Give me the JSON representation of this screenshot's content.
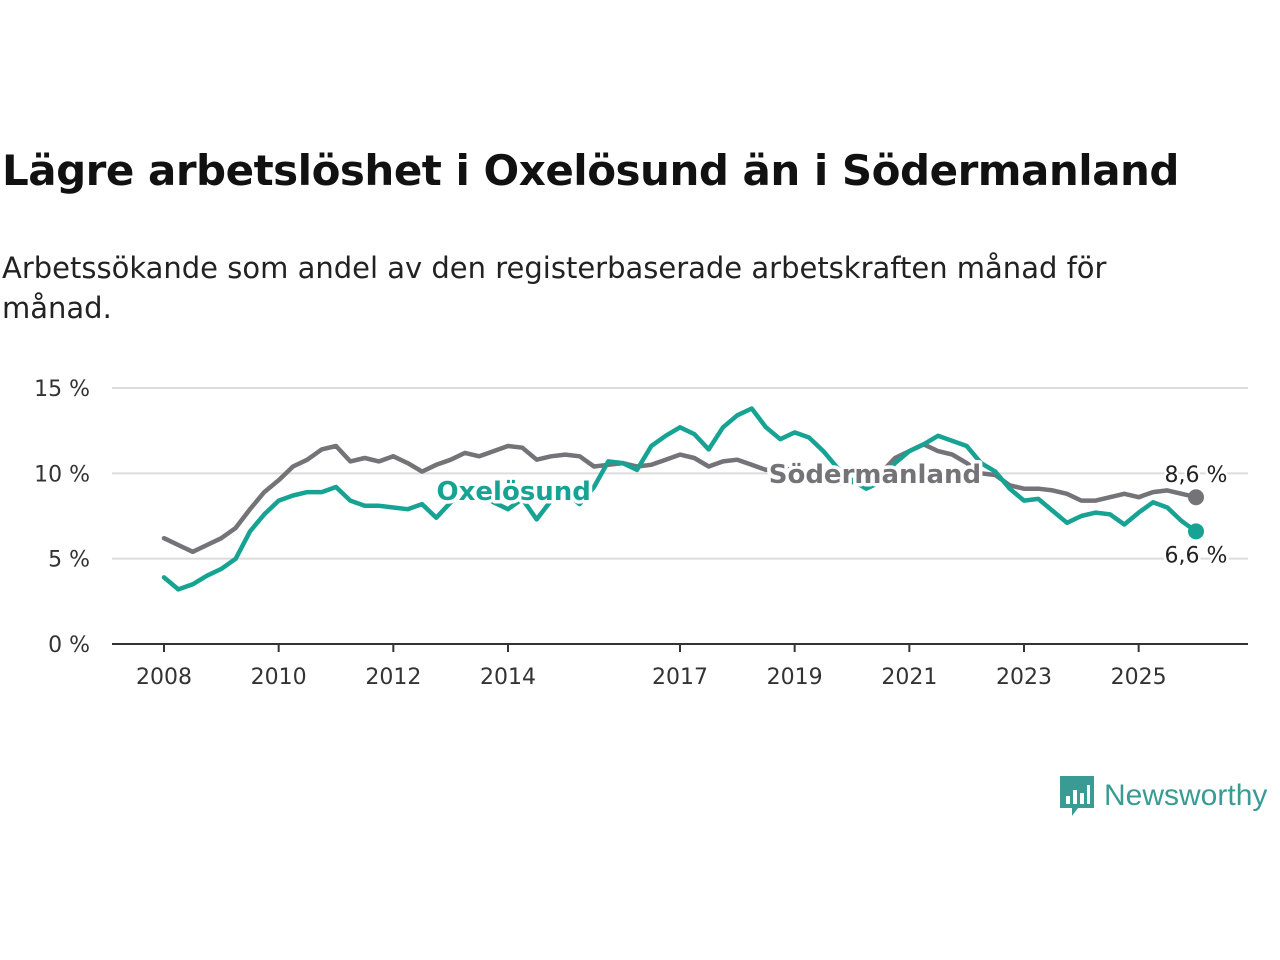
{
  "header": {
    "title": "Lägre arbetslöshet i Oxelösund än i Södermanland",
    "subtitle": "Arbetssökande som andel av den registerbaserade arbetskraften månad för månad."
  },
  "brand": {
    "name": "Newsworthy",
    "icon": "newsworthy-logo-icon",
    "color": "#3a9b94"
  },
  "chart_data": {
    "type": "line",
    "ylim": [
      0,
      15
    ],
    "xlim": [
      2007.5,
      2026.4
    ],
    "y_ticks": [
      {
        "value": 0,
        "label": "0 %"
      },
      {
        "value": 5,
        "label": "5 %"
      },
      {
        "value": 10,
        "label": "10 %"
      },
      {
        "value": 15,
        "label": "15 %"
      }
    ],
    "x_ticks": [
      {
        "value": 2008,
        "label": "2008"
      },
      {
        "value": 2010,
        "label": "2010"
      },
      {
        "value": 2012,
        "label": "2012"
      },
      {
        "value": 2014,
        "label": "2014"
      },
      {
        "value": 2017,
        "label": "2017"
      },
      {
        "value": 2019,
        "label": "2019"
      },
      {
        "value": 2021,
        "label": "2021"
      },
      {
        "value": 2023,
        "label": "2023"
      },
      {
        "value": 2025,
        "label": "2025"
      }
    ],
    "grid": true,
    "series": [
      {
        "name": "Södermanland",
        "color": "#737378",
        "end_label": "8,6 %",
        "points": [
          [
            2008.0,
            6.2
          ],
          [
            2008.25,
            5.8
          ],
          [
            2008.5,
            5.4
          ],
          [
            2008.75,
            5.8
          ],
          [
            2009.0,
            6.2
          ],
          [
            2009.25,
            6.8
          ],
          [
            2009.5,
            7.9
          ],
          [
            2009.75,
            8.9
          ],
          [
            2010.0,
            9.6
          ],
          [
            2010.25,
            10.4
          ],
          [
            2010.5,
            10.8
          ],
          [
            2010.75,
            11.4
          ],
          [
            2011.0,
            11.6
          ],
          [
            2011.25,
            10.7
          ],
          [
            2011.5,
            10.9
          ],
          [
            2011.75,
            10.7
          ],
          [
            2012.0,
            11.0
          ],
          [
            2012.25,
            10.6
          ],
          [
            2012.5,
            10.1
          ],
          [
            2012.75,
            10.5
          ],
          [
            2013.0,
            10.8
          ],
          [
            2013.25,
            11.2
          ],
          [
            2013.5,
            11.0
          ],
          [
            2013.75,
            11.3
          ],
          [
            2014.0,
            11.6
          ],
          [
            2014.25,
            11.5
          ],
          [
            2014.5,
            10.8
          ],
          [
            2014.75,
            11.0
          ],
          [
            2015.0,
            11.1
          ],
          [
            2015.25,
            11.0
          ],
          [
            2015.5,
            10.4
          ],
          [
            2015.75,
            10.5
          ],
          [
            2016.0,
            10.6
          ],
          [
            2016.25,
            10.4
          ],
          [
            2016.5,
            10.5
          ],
          [
            2016.75,
            10.8
          ],
          [
            2017.0,
            11.1
          ],
          [
            2017.25,
            10.9
          ],
          [
            2017.5,
            10.4
          ],
          [
            2017.75,
            10.7
          ],
          [
            2018.0,
            10.8
          ],
          [
            2018.25,
            10.5
          ],
          [
            2018.5,
            10.2
          ],
          [
            2018.75,
            10.3
          ],
          [
            2019.0,
            10.2
          ],
          [
            2019.25,
            9.9
          ],
          [
            2019.5,
            9.7
          ],
          [
            2019.75,
            9.4
          ],
          [
            2020.0,
            9.5
          ],
          [
            2020.25,
            9.3
          ],
          [
            2020.5,
            10.0
          ],
          [
            2020.75,
            10.9
          ],
          [
            2021.0,
            11.3
          ],
          [
            2021.25,
            11.7
          ],
          [
            2021.5,
            11.3
          ],
          [
            2021.75,
            11.1
          ],
          [
            2022.0,
            10.6
          ],
          [
            2022.25,
            10.0
          ],
          [
            2022.5,
            9.9
          ],
          [
            2022.75,
            9.3
          ],
          [
            2023.0,
            9.1
          ],
          [
            2023.25,
            9.1
          ],
          [
            2023.5,
            9.0
          ],
          [
            2023.75,
            8.8
          ],
          [
            2024.0,
            8.4
          ],
          [
            2024.25,
            8.4
          ],
          [
            2024.5,
            8.6
          ],
          [
            2024.75,
            8.8
          ],
          [
            2025.0,
            8.6
          ],
          [
            2025.25,
            8.9
          ],
          [
            2025.5,
            9.0
          ],
          [
            2025.75,
            8.8
          ],
          [
            2026.0,
            8.6
          ]
        ]
      },
      {
        "name": "Oxelösund",
        "color": "#17a394",
        "end_label": "6,6 %",
        "points": [
          [
            2008.0,
            3.9
          ],
          [
            2008.25,
            3.2
          ],
          [
            2008.5,
            3.5
          ],
          [
            2008.75,
            4.0
          ],
          [
            2009.0,
            4.4
          ],
          [
            2009.25,
            5.0
          ],
          [
            2009.5,
            6.6
          ],
          [
            2009.75,
            7.6
          ],
          [
            2010.0,
            8.4
          ],
          [
            2010.25,
            8.7
          ],
          [
            2010.5,
            8.9
          ],
          [
            2010.75,
            8.9
          ],
          [
            2011.0,
            9.2
          ],
          [
            2011.25,
            8.4
          ],
          [
            2011.5,
            8.1
          ],
          [
            2011.75,
            8.1
          ],
          [
            2012.0,
            8.0
          ],
          [
            2012.25,
            7.9
          ],
          [
            2012.5,
            8.2
          ],
          [
            2012.75,
            7.4
          ],
          [
            2013.0,
            8.3
          ],
          [
            2013.25,
            9.0
          ],
          [
            2013.5,
            8.8
          ],
          [
            2013.75,
            8.3
          ],
          [
            2014.0,
            7.9
          ],
          [
            2014.25,
            8.5
          ],
          [
            2014.5,
            7.3
          ],
          [
            2014.75,
            8.4
          ],
          [
            2015.0,
            8.9
          ],
          [
            2015.25,
            8.2
          ],
          [
            2015.5,
            9.2
          ],
          [
            2015.75,
            10.7
          ],
          [
            2016.0,
            10.6
          ],
          [
            2016.25,
            10.2
          ],
          [
            2016.5,
            11.6
          ],
          [
            2016.75,
            12.2
          ],
          [
            2017.0,
            12.7
          ],
          [
            2017.25,
            12.3
          ],
          [
            2017.5,
            11.4
          ],
          [
            2017.75,
            12.7
          ],
          [
            2018.0,
            13.4
          ],
          [
            2018.25,
            13.8
          ],
          [
            2018.5,
            12.7
          ],
          [
            2018.75,
            12.0
          ],
          [
            2019.0,
            12.4
          ],
          [
            2019.25,
            12.1
          ],
          [
            2019.5,
            11.3
          ],
          [
            2019.75,
            10.3
          ],
          [
            2020.0,
            9.6
          ],
          [
            2020.25,
            9.1
          ],
          [
            2020.5,
            9.5
          ],
          [
            2020.75,
            10.6
          ],
          [
            2021.0,
            11.3
          ],
          [
            2021.25,
            11.7
          ],
          [
            2021.5,
            12.2
          ],
          [
            2021.75,
            11.9
          ],
          [
            2022.0,
            11.6
          ],
          [
            2022.25,
            10.6
          ],
          [
            2022.5,
            10.1
          ],
          [
            2022.75,
            9.1
          ],
          [
            2023.0,
            8.4
          ],
          [
            2023.25,
            8.5
          ],
          [
            2023.5,
            7.8
          ],
          [
            2023.75,
            7.1
          ],
          [
            2024.0,
            7.5
          ],
          [
            2024.25,
            7.7
          ],
          [
            2024.5,
            7.6
          ],
          [
            2024.75,
            7.0
          ],
          [
            2025.0,
            7.7
          ],
          [
            2025.25,
            8.3
          ],
          [
            2025.5,
            8.0
          ],
          [
            2025.75,
            7.2
          ],
          [
            2026.0,
            6.6
          ]
        ]
      }
    ],
    "annotations": [
      {
        "text": "Oxelösund",
        "series": "Oxelösund",
        "x": 2014.1,
        "y": 8.9
      },
      {
        "text": "Södermanland",
        "series": "Södermanland",
        "x": 2020.4,
        "y": 9.9
      }
    ]
  }
}
